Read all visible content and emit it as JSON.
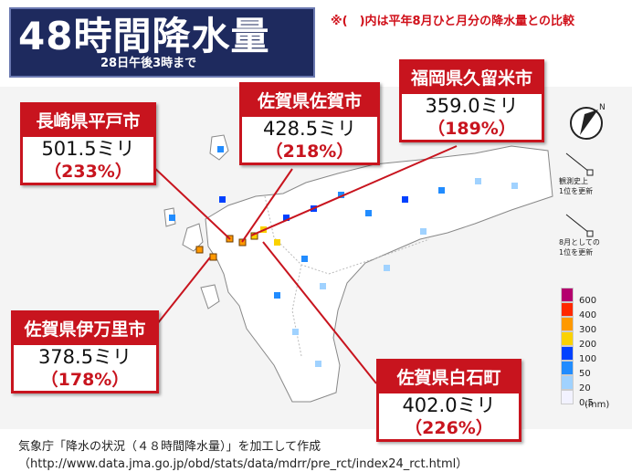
{
  "header": {
    "title": "48時間降水量",
    "subtitle": "28日午後3時まで"
  },
  "note": "※(　)内は平年8月ひと月分の降水量との比較",
  "callouts": [
    {
      "place": "長崎県平戸市",
      "amount": "501.5ミリ",
      "ratio": "（233%）"
    },
    {
      "place": "佐賀県佐賀市",
      "amount": "428.5ミリ",
      "ratio": "（218%）"
    },
    {
      "place": "福岡県久留米市",
      "amount": "359.0ミリ",
      "ratio": "（189%）"
    },
    {
      "place": "佐賀県伊万里市",
      "amount": "378.5ミリ",
      "ratio": "（178%）"
    },
    {
      "place": "佐賀県白石町",
      "amount": "402.0ミリ",
      "ratio": "（226%）"
    }
  ],
  "marker_legend": [
    {
      "line1": "観測史上",
      "line2": "1位を更新"
    },
    {
      "line1": "8月としての",
      "line2": "1位を更新"
    }
  ],
  "scale": {
    "unit": "(mm)",
    "items": [
      {
        "label": "600",
        "color": "#b4006e"
      },
      {
        "label": "400",
        "color": "#ff2800"
      },
      {
        "label": "300",
        "color": "#ff9900"
      },
      {
        "label": "200",
        "color": "#fad200"
      },
      {
        "label": "100",
        "color": "#0041ff"
      },
      {
        "label": "50",
        "color": "#218cff"
      },
      {
        "label": "20",
        "color": "#a0d2ff"
      },
      {
        "label": "0.5",
        "color": "#f2f2ff"
      }
    ]
  },
  "footer": {
    "line1": "気象庁「降水の状況（４８時間降水量）」を加工して作成",
    "line2": "（http://www.data.jma.go.jp/obd/stats/data/mdrr/pre_rct/index24_rct.html）"
  }
}
